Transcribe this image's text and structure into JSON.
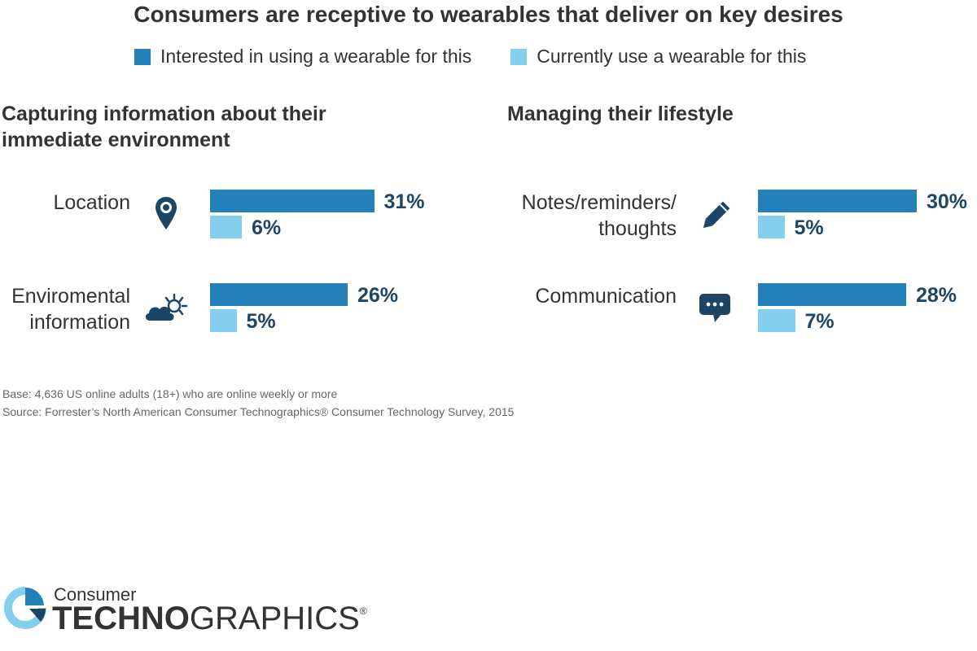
{
  "title": "Consumers are receptive to wearables that deliver on key desires",
  "colors": {
    "interested": "#2480b8",
    "current": "#84cfee",
    "value_text": "#1c4566",
    "icon": "#1c4566"
  },
  "chart_data": {
    "type": "bar",
    "orientation": "horizontal",
    "legend": {
      "placement": "top",
      "entries": [
        "Interested in using a wearable for this",
        "Currently use a wearable for this"
      ]
    },
    "panels": [
      {
        "title": "Capturing information about their immediate environment",
        "title_lines": [
          "Capturing information about their",
          "immediate environment"
        ],
        "rows": [
          {
            "label_lines": [
              "Location"
            ],
            "icon": "location-pin-icon",
            "interested": 31,
            "current": 6
          },
          {
            "label_lines": [
              "Enviromental",
              "information"
            ],
            "icon": "weather-cloud-sun-icon",
            "interested": 26,
            "current": 5
          }
        ]
      },
      {
        "title": "Managing their lifestyle",
        "title_lines": [
          "Managing their lifestyle"
        ],
        "rows": [
          {
            "label_lines": [
              "Notes/reminders/",
              "thoughts"
            ],
            "icon": "pencil-icon",
            "interested": 30,
            "current": 5
          },
          {
            "label_lines": [
              "Communication"
            ],
            "icon": "chat-bubble-icon",
            "interested": 28,
            "current": 7
          }
        ]
      }
    ],
    "value_suffix": "%"
  },
  "footnotes": {
    "base": "Base: 4,636 US online adults (18+) who are online weekly or more",
    "source": "Source: Forrester’s North American Consumer Technographics® Consumer Technology Survey, 2015"
  },
  "brand": {
    "small": "Consumer",
    "bold_part": "TECHNO",
    "regular_part": "GRAPHICS",
    "mark": "®"
  }
}
